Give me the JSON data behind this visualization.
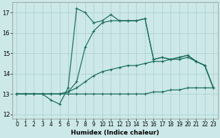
{
  "xlabel": "Humidex (Indice chaleur)",
  "background_color": "#cce8e8",
  "grid_color": "#aacccc",
  "line_color": "#1a6b5a",
  "xlim": [
    -0.5,
    23.5
  ],
  "ylim": [
    11.8,
    17.5
  ],
  "yticks": [
    12,
    13,
    14,
    15,
    16,
    17
  ],
  "xticks": [
    0,
    1,
    2,
    3,
    4,
    5,
    6,
    7,
    8,
    9,
    10,
    11,
    12,
    13,
    14,
    15,
    16,
    17,
    18,
    19,
    20,
    21,
    22,
    23
  ],
  "line1_x": [
    0,
    1,
    2,
    3,
    4,
    5,
    6,
    7,
    8,
    9,
    10,
    11,
    12,
    13,
    14,
    15,
    16,
    17,
    18,
    19,
    20,
    21,
    22,
    23
  ],
  "line1_y": [
    13.0,
    13.0,
    13.0,
    13.0,
    13.0,
    13.0,
    13.0,
    13.0,
    13.0,
    13.0,
    13.0,
    13.0,
    13.0,
    13.0,
    13.0,
    13.0,
    13.1,
    13.1,
    13.2,
    13.2,
    13.3,
    13.3,
    13.3,
    13.3
  ],
  "line2_x": [
    0,
    1,
    2,
    3,
    4,
    5,
    6,
    7,
    8,
    9,
    10,
    11,
    12,
    13,
    14,
    15,
    16,
    17,
    18,
    19,
    20,
    21,
    22,
    23
  ],
  "line2_y": [
    13.0,
    13.0,
    13.0,
    13.0,
    13.0,
    13.0,
    13.1,
    13.3,
    13.6,
    13.9,
    14.1,
    14.2,
    14.3,
    14.4,
    14.4,
    14.5,
    14.6,
    14.6,
    14.7,
    14.7,
    14.8,
    14.6,
    14.4,
    13.3
  ],
  "line3_x": [
    0,
    1,
    2,
    3,
    4,
    5,
    6,
    7,
    8,
    9,
    10,
    11,
    12,
    13,
    14,
    15,
    16,
    17,
    18,
    19,
    20,
    21,
    22,
    23
  ],
  "line3_y": [
    13.0,
    13.0,
    13.0,
    13.0,
    13.0,
    13.0,
    13.1,
    13.6,
    15.3,
    16.1,
    16.5,
    16.6,
    16.6,
    16.6,
    16.6,
    16.7,
    14.7,
    14.8,
    14.7,
    14.8,
    14.9,
    14.6,
    14.4,
    13.3
  ],
  "line4_x": [
    0,
    1,
    2,
    3,
    4,
    5,
    6,
    7,
    8,
    9,
    10,
    11,
    12,
    13,
    14,
    15,
    16,
    17,
    18,
    19,
    20,
    21,
    22,
    23
  ],
  "line4_y": [
    13.0,
    13.0,
    13.0,
    13.0,
    12.7,
    12.5,
    13.3,
    17.2,
    17.0,
    16.5,
    16.6,
    16.9,
    16.6,
    16.6,
    16.6,
    16.7,
    14.7,
    14.8,
    14.7,
    14.8,
    14.9,
    14.6,
    14.4,
    13.3
  ]
}
